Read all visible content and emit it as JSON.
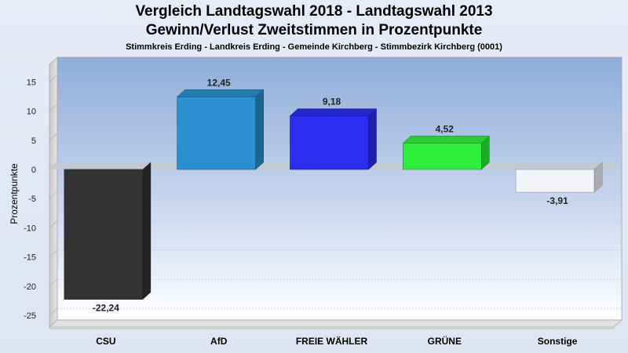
{
  "title": "Vergleich Landtagswahl 2018 - Landtagswahl 2013",
  "title_line2": "Gewinn/Verlust Zweitstimmen in Prozentpunkte",
  "subtitle": "Stimmkreis Erding - Landkreis Erding - Gemeinde Kirchberg - Stimmbezirk Kirchberg (0001)",
  "chart_data": {
    "type": "bar",
    "title": "Vergleich Landtagswahl 2018 - Landtagswahl 2013",
    "subtitle": "Gewinn/Verlust Zweitstimmen in Prozentpunkte",
    "xlabel": "",
    "ylabel": "Prozentpunkte",
    "categories": [
      "CSU",
      "AfD",
      "FREIE WÄHLER",
      "GRÜNE",
      "Sonstige"
    ],
    "values": [
      -22.24,
      12.45,
      9.18,
      4.52,
      -3.91
    ],
    "value_labels": [
      "-22,24",
      "12,45",
      "9,18",
      "4,52",
      "-3,91"
    ],
    "colors": [
      "#333333",
      "#2a90d0",
      "#2d2df0",
      "#2ef03c",
      "#f2f4f8"
    ],
    "ylim": [
      -27,
      18
    ],
    "yticks": [
      15,
      10,
      5,
      0,
      -5,
      -10,
      -15,
      -20,
      -25
    ],
    "ytick_labels": [
      "15",
      "10",
      "5",
      "0",
      "-5",
      "-10",
      "-15",
      "-20",
      "-25"
    ],
    "grid": true,
    "legend": "none",
    "style": "3d"
  }
}
